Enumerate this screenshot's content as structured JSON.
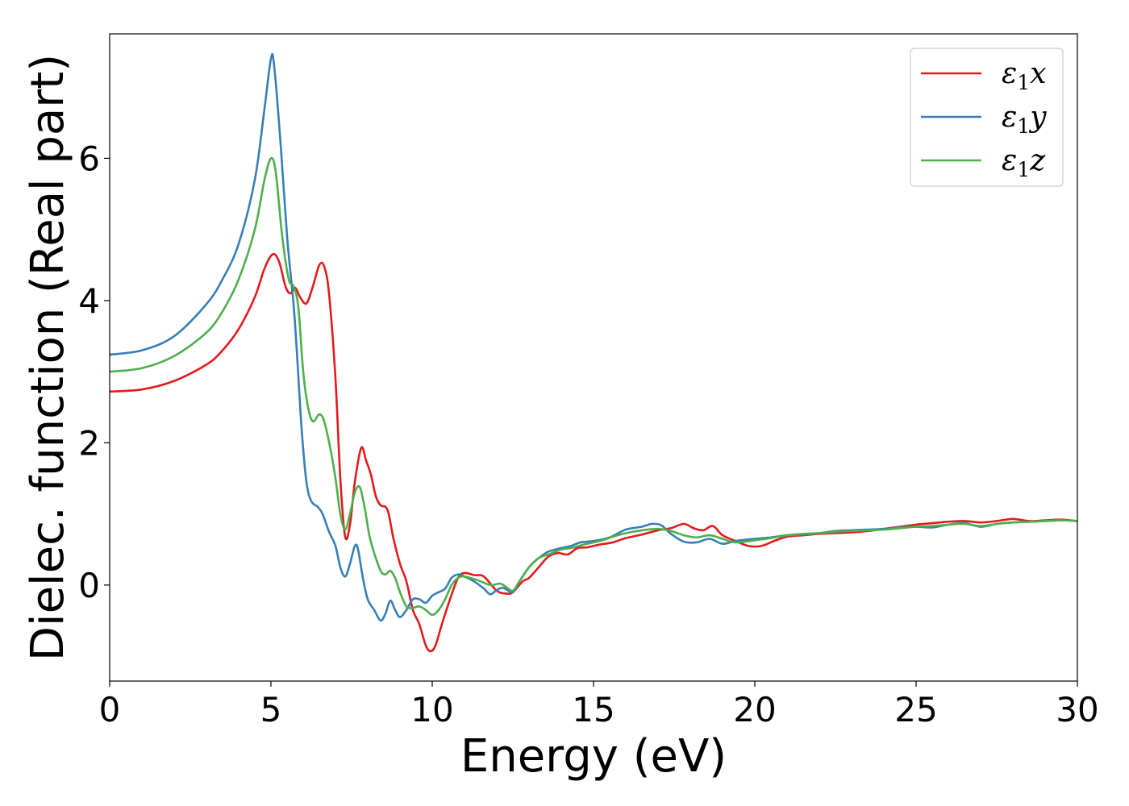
{
  "chart_data": {
    "type": "line",
    "title": "",
    "xlabel": "Energy (eV)",
    "ylabel": "Dielec. function (Real part)",
    "xlim": [
      0,
      30
    ],
    "ylim": [
      -1.35,
      7.75
    ],
    "xticks": [
      0,
      5,
      10,
      15,
      20,
      25,
      30
    ],
    "xtick_labels": [
      "0",
      "5",
      "10",
      "15",
      "20",
      "25",
      "30"
    ],
    "yticks": [
      0,
      2,
      4,
      6
    ],
    "ytick_labels": [
      "0",
      "2",
      "4",
      "6"
    ],
    "grid": false,
    "legend_position": "top-right",
    "series": [
      {
        "name": "ε1x",
        "legend_base": "ε",
        "legend_sub": "1",
        "legend_var": "x",
        "color": "#e41a1c",
        "points": [
          [
            0,
            2.72
          ],
          [
            1,
            2.75
          ],
          [
            2,
            2.87
          ],
          [
            3,
            3.1
          ],
          [
            3.5,
            3.3
          ],
          [
            4,
            3.6
          ],
          [
            4.5,
            4.05
          ],
          [
            4.8,
            4.45
          ],
          [
            5.05,
            4.65
          ],
          [
            5.25,
            4.55
          ],
          [
            5.45,
            4.2
          ],
          [
            5.6,
            4.1
          ],
          [
            5.75,
            4.18
          ],
          [
            5.9,
            4.05
          ],
          [
            6.1,
            3.96
          ],
          [
            6.3,
            4.2
          ],
          [
            6.5,
            4.5
          ],
          [
            6.65,
            4.48
          ],
          [
            6.8,
            4.1
          ],
          [
            7.0,
            2.9
          ],
          [
            7.15,
            1.5
          ],
          [
            7.3,
            0.68
          ],
          [
            7.45,
            0.85
          ],
          [
            7.6,
            1.45
          ],
          [
            7.8,
            1.93
          ],
          [
            7.95,
            1.75
          ],
          [
            8.1,
            1.55
          ],
          [
            8.25,
            1.25
          ],
          [
            8.4,
            1.12
          ],
          [
            8.55,
            1.1
          ],
          [
            8.65,
            1.0
          ],
          [
            8.8,
            0.65
          ],
          [
            9.0,
            0.3
          ],
          [
            9.2,
            0.05
          ],
          [
            9.4,
            -0.35
          ],
          [
            9.6,
            -0.55
          ],
          [
            9.8,
            -0.85
          ],
          [
            9.95,
            -0.93
          ],
          [
            10.1,
            -0.85
          ],
          [
            10.3,
            -0.55
          ],
          [
            10.55,
            -0.2
          ],
          [
            10.8,
            0.1
          ],
          [
            11,
            0.17
          ],
          [
            11.3,
            0.14
          ],
          [
            11.6,
            0.12
          ],
          [
            12.0,
            -0.08
          ],
          [
            12.3,
            -0.12
          ],
          [
            12.5,
            -0.1
          ],
          [
            12.8,
            0.05
          ],
          [
            13.0,
            0.1
          ],
          [
            13.3,
            0.25
          ],
          [
            13.6,
            0.4
          ],
          [
            13.9,
            0.45
          ],
          [
            14.2,
            0.43
          ],
          [
            14.5,
            0.52
          ],
          [
            14.8,
            0.53
          ],
          [
            15.2,
            0.57
          ],
          [
            15.6,
            0.6
          ],
          [
            16.0,
            0.66
          ],
          [
            16.5,
            0.71
          ],
          [
            17.0,
            0.77
          ],
          [
            17.4,
            0.8
          ],
          [
            17.8,
            0.86
          ],
          [
            18.1,
            0.8
          ],
          [
            18.4,
            0.77
          ],
          [
            18.7,
            0.83
          ],
          [
            19.0,
            0.7
          ],
          [
            19.4,
            0.62
          ],
          [
            19.8,
            0.55
          ],
          [
            20.2,
            0.55
          ],
          [
            20.6,
            0.62
          ],
          [
            21.0,
            0.68
          ],
          [
            21.5,
            0.7
          ],
          [
            22,
            0.72
          ],
          [
            22.5,
            0.73
          ],
          [
            23,
            0.74
          ],
          [
            23.5,
            0.76
          ],
          [
            24,
            0.79
          ],
          [
            24.5,
            0.82
          ],
          [
            25,
            0.85
          ],
          [
            25.5,
            0.87
          ],
          [
            26,
            0.89
          ],
          [
            26.5,
            0.9
          ],
          [
            27,
            0.88
          ],
          [
            27.5,
            0.9
          ],
          [
            28,
            0.93
          ],
          [
            28.5,
            0.9
          ],
          [
            29,
            0.91
          ],
          [
            29.5,
            0.92
          ],
          [
            30,
            0.9
          ]
        ]
      },
      {
        "name": "ε1y",
        "legend_base": "ε",
        "legend_sub": "1",
        "legend_var": "y",
        "color": "#377eb8",
        "points": [
          [
            0,
            3.24
          ],
          [
            1,
            3.3
          ],
          [
            2,
            3.5
          ],
          [
            3,
            3.95
          ],
          [
            3.5,
            4.3
          ],
          [
            4,
            4.8
          ],
          [
            4.5,
            5.7
          ],
          [
            4.8,
            6.7
          ],
          [
            5.0,
            7.4
          ],
          [
            5.1,
            7.3
          ],
          [
            5.3,
            6.2
          ],
          [
            5.5,
            4.9
          ],
          [
            5.7,
            3.95
          ],
          [
            5.8,
            3.3
          ],
          [
            5.95,
            2.2
          ],
          [
            6.1,
            1.45
          ],
          [
            6.25,
            1.18
          ],
          [
            6.45,
            1.1
          ],
          [
            6.6,
            1.0
          ],
          [
            6.8,
            0.75
          ],
          [
            7.0,
            0.55
          ],
          [
            7.15,
            0.25
          ],
          [
            7.3,
            0.12
          ],
          [
            7.45,
            0.3
          ],
          [
            7.6,
            0.55
          ],
          [
            7.7,
            0.5
          ],
          [
            7.85,
            0.1
          ],
          [
            8.0,
            -0.2
          ],
          [
            8.2,
            -0.35
          ],
          [
            8.4,
            -0.5
          ],
          [
            8.55,
            -0.4
          ],
          [
            8.7,
            -0.22
          ],
          [
            8.85,
            -0.35
          ],
          [
            9.0,
            -0.45
          ],
          [
            9.2,
            -0.35
          ],
          [
            9.4,
            -0.2
          ],
          [
            9.6,
            -0.2
          ],
          [
            9.8,
            -0.25
          ],
          [
            10.0,
            -0.15
          ],
          [
            10.2,
            -0.1
          ],
          [
            10.4,
            -0.05
          ],
          [
            10.6,
            0.1
          ],
          [
            10.8,
            0.15
          ],
          [
            11.0,
            0.12
          ],
          [
            11.3,
            0.05
          ],
          [
            11.6,
            -0.05
          ],
          [
            11.8,
            -0.13
          ],
          [
            12.0,
            -0.07
          ],
          [
            12.2,
            -0.04
          ],
          [
            12.5,
            -0.1
          ],
          [
            12.7,
            0.05
          ],
          [
            13.0,
            0.25
          ],
          [
            13.3,
            0.38
          ],
          [
            13.6,
            0.47
          ],
          [
            14.0,
            0.52
          ],
          [
            14.3,
            0.55
          ],
          [
            14.6,
            0.6
          ],
          [
            15.0,
            0.62
          ],
          [
            15.5,
            0.67
          ],
          [
            16.0,
            0.78
          ],
          [
            16.5,
            0.82
          ],
          [
            16.8,
            0.86
          ],
          [
            17.1,
            0.84
          ],
          [
            17.4,
            0.72
          ],
          [
            17.8,
            0.61
          ],
          [
            18.2,
            0.6
          ],
          [
            18.6,
            0.65
          ],
          [
            19.0,
            0.58
          ],
          [
            19.4,
            0.62
          ],
          [
            20.0,
            0.65
          ],
          [
            20.5,
            0.67
          ],
          [
            21,
            0.7
          ],
          [
            21.5,
            0.71
          ],
          [
            22,
            0.73
          ],
          [
            22.5,
            0.76
          ],
          [
            23,
            0.77
          ],
          [
            23.5,
            0.78
          ],
          [
            24,
            0.79
          ],
          [
            24.5,
            0.81
          ],
          [
            25,
            0.82
          ],
          [
            25.5,
            0.81
          ],
          [
            26,
            0.85
          ],
          [
            26.5,
            0.87
          ],
          [
            27,
            0.82
          ],
          [
            27.5,
            0.86
          ],
          [
            28,
            0.88
          ],
          [
            28.5,
            0.89
          ],
          [
            29,
            0.9
          ],
          [
            29.5,
            0.91
          ],
          [
            30,
            0.9
          ]
        ]
      },
      {
        "name": "ε1z",
        "legend_base": "ε",
        "legend_sub": "1",
        "legend_var": "z",
        "color": "#4daf4a",
        "points": [
          [
            0,
            3.0
          ],
          [
            1,
            3.05
          ],
          [
            2,
            3.22
          ],
          [
            3,
            3.55
          ],
          [
            3.5,
            3.85
          ],
          [
            4,
            4.3
          ],
          [
            4.5,
            5.0
          ],
          [
            4.8,
            5.7
          ],
          [
            5.0,
            6.0
          ],
          [
            5.15,
            5.8
          ],
          [
            5.35,
            4.9
          ],
          [
            5.55,
            4.3
          ],
          [
            5.7,
            4.2
          ],
          [
            5.85,
            3.9
          ],
          [
            6.0,
            3.0
          ],
          [
            6.15,
            2.5
          ],
          [
            6.3,
            2.3
          ],
          [
            6.5,
            2.4
          ],
          [
            6.65,
            2.3
          ],
          [
            6.85,
            1.9
          ],
          [
            7.0,
            1.5
          ],
          [
            7.15,
            1.0
          ],
          [
            7.3,
            0.78
          ],
          [
            7.45,
            1.0
          ],
          [
            7.6,
            1.3
          ],
          [
            7.75,
            1.38
          ],
          [
            7.9,
            1.1
          ],
          [
            8.05,
            0.7
          ],
          [
            8.2,
            0.45
          ],
          [
            8.4,
            0.2
          ],
          [
            8.55,
            0.15
          ],
          [
            8.7,
            0.2
          ],
          [
            8.85,
            0.1
          ],
          [
            9.0,
            -0.1
          ],
          [
            9.2,
            -0.3
          ],
          [
            9.4,
            -0.32
          ],
          [
            9.6,
            -0.3
          ],
          [
            9.8,
            -0.35
          ],
          [
            10.0,
            -0.42
          ],
          [
            10.2,
            -0.35
          ],
          [
            10.4,
            -0.2
          ],
          [
            10.6,
            0.0
          ],
          [
            10.8,
            0.1
          ],
          [
            11.0,
            0.12
          ],
          [
            11.4,
            0.07
          ],
          [
            11.8,
            0.0
          ],
          [
            12.1,
            0.02
          ],
          [
            12.3,
            -0.03
          ],
          [
            12.5,
            -0.08
          ],
          [
            12.7,
            0.05
          ],
          [
            13.0,
            0.25
          ],
          [
            13.3,
            0.38
          ],
          [
            13.6,
            0.43
          ],
          [
            14.0,
            0.5
          ],
          [
            14.3,
            0.52
          ],
          [
            14.7,
            0.57
          ],
          [
            15.2,
            0.62
          ],
          [
            15.6,
            0.68
          ],
          [
            16.0,
            0.73
          ],
          [
            16.5,
            0.77
          ],
          [
            17.0,
            0.79
          ],
          [
            17.4,
            0.76
          ],
          [
            17.8,
            0.7
          ],
          [
            18.2,
            0.67
          ],
          [
            18.6,
            0.7
          ],
          [
            19.0,
            0.65
          ],
          [
            19.4,
            0.6
          ],
          [
            20.0,
            0.63
          ],
          [
            20.5,
            0.66
          ],
          [
            21,
            0.7
          ],
          [
            21.5,
            0.72
          ],
          [
            22,
            0.73
          ],
          [
            22.5,
            0.75
          ],
          [
            23,
            0.76
          ],
          [
            23.5,
            0.77
          ],
          [
            24,
            0.78
          ],
          [
            24.5,
            0.8
          ],
          [
            25,
            0.82
          ],
          [
            25.5,
            0.83
          ],
          [
            26,
            0.85
          ],
          [
            26.5,
            0.86
          ],
          [
            27,
            0.83
          ],
          [
            27.5,
            0.86
          ],
          [
            28,
            0.88
          ],
          [
            28.5,
            0.89
          ],
          [
            29,
            0.9
          ],
          [
            29.5,
            0.91
          ],
          [
            30,
            0.9
          ]
        ]
      }
    ]
  }
}
